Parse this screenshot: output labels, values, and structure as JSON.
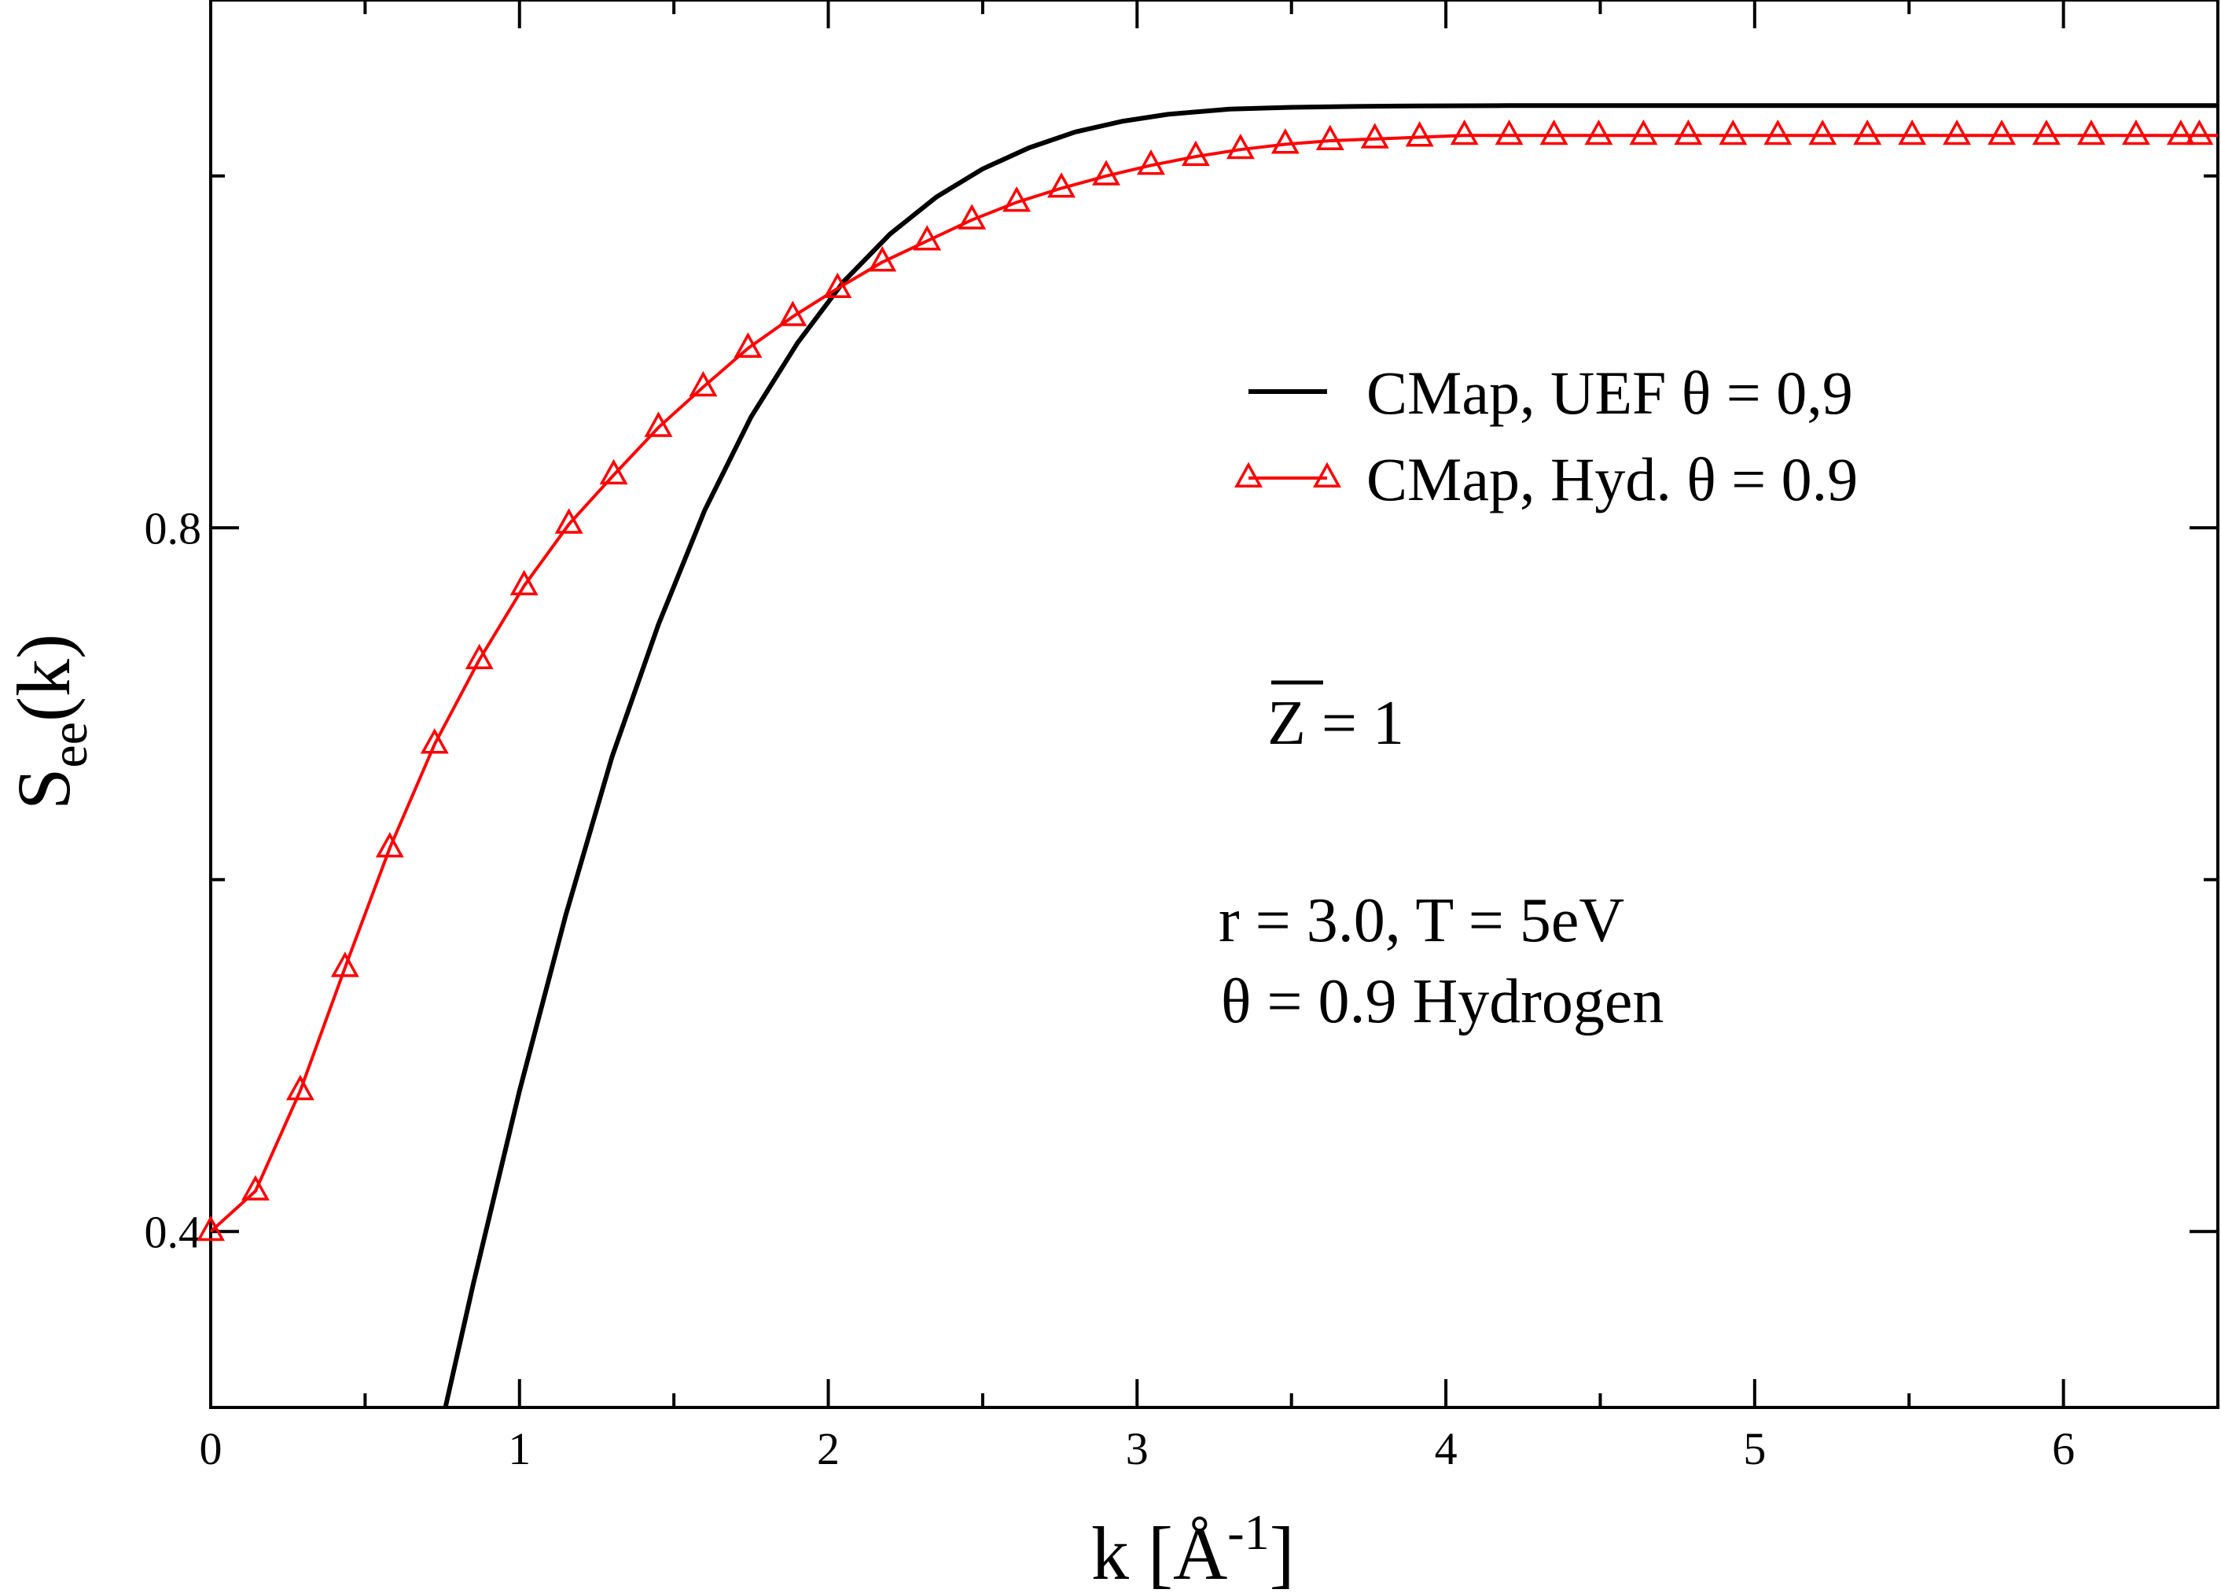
{
  "chart_data": {
    "type": "line",
    "xlabel": "k [Å-1]",
    "ylabel": "See(k)",
    "xlim": [
      0,
      6.5
    ],
    "ylim": [
      0.3,
      1.1
    ],
    "xticks": [
      "0",
      "1",
      "2",
      "3",
      "4",
      "5",
      "6"
    ],
    "yticks": [
      "0.4",
      "0.8"
    ],
    "grid": false,
    "legend_position": "right",
    "series": [
      {
        "name": "CMap,  UEF  θ = 0,9",
        "color": "#000000",
        "marker": "none",
        "x": [
          0.76,
          0.85,
          1.0,
          1.15,
          1.3,
          1.45,
          1.6,
          1.75,
          1.9,
          2.05,
          2.2,
          2.35,
          2.5,
          2.65,
          2.8,
          2.95,
          3.1,
          3.3,
          3.5,
          3.7,
          3.9,
          4.2,
          4.6,
          5.0,
          5.5,
          6.0,
          6.5
        ],
        "y": [
          0.3,
          0.37,
          0.48,
          0.58,
          0.67,
          0.745,
          0.81,
          0.863,
          0.905,
          0.94,
          0.967,
          0.988,
          1.004,
          1.016,
          1.025,
          1.031,
          1.035,
          1.038,
          1.039,
          1.0395,
          1.0398,
          1.04,
          1.04,
          1.04,
          1.04,
          1.04,
          1.04
        ]
      },
      {
        "name": "CMap, Hyd. θ = 0.9",
        "color": "#ff0000",
        "marker": "triangle",
        "x": [
          0.0,
          0.145,
          0.29,
          0.435,
          0.58,
          0.725,
          0.87,
          1.015,
          1.16,
          1.305,
          1.45,
          1.595,
          1.74,
          1.885,
          2.03,
          2.175,
          2.32,
          2.465,
          2.61,
          2.755,
          2.9,
          3.045,
          3.19,
          3.335,
          3.48,
          3.625,
          3.77,
          3.915,
          4.06,
          4.205,
          4.35,
          4.495,
          4.64,
          4.785,
          4.93,
          5.075,
          5.22,
          5.365,
          5.51,
          5.655,
          5.8,
          5.945,
          6.09,
          6.235,
          6.38,
          6.5
        ],
        "y": [
          0.4,
          0.423,
          0.48,
          0.55,
          0.618,
          0.677,
          0.725,
          0.767,
          0.802,
          0.83,
          0.857,
          0.88,
          0.902,
          0.92,
          0.936,
          0.951,
          0.963,
          0.975,
          0.985,
          0.993,
          1.0,
          1.006,
          1.011,
          1.015,
          1.018,
          1.02,
          1.021,
          1.022,
          1.023,
          1.023,
          1.023,
          1.023,
          1.023,
          1.023,
          1.023,
          1.023,
          1.023,
          1.023,
          1.023,
          1.023,
          1.023,
          1.023,
          1.023,
          1.023,
          1.023,
          1.023
        ]
      }
    ],
    "annotations": {
      "zbar": "Z = 1",
      "params_line1": "r = 3.0, T = 5eV",
      "params_line2": "θ = 0.9 Hydrogen"
    }
  },
  "labels": {
    "xlabel_main": "k [Å",
    "xlabel_sup": "-1",
    "xlabel_close": "]",
    "ylabel_main": "S",
    "ylabel_sub": "ee",
    "ylabel_rest": "(k)"
  }
}
